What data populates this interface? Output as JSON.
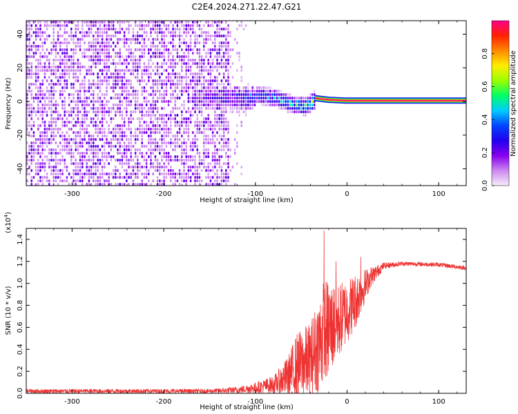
{
  "title": "C2E4.2024.271.22.47.G21",
  "chart_data": [
    {
      "type": "heatmap",
      "xlabel": "Height of straight line (km)",
      "ylabel": "Frequency (Hz)",
      "xlim": [
        -350,
        130
      ],
      "ylim": [
        -50,
        48
      ],
      "x_ticks": [
        "-300",
        "-200",
        "-100",
        "0",
        "100"
      ],
      "y_ticks": [
        "-40",
        "-20",
        "0",
        "20",
        "40"
      ],
      "colorbar": {
        "label": "Normalized spectral amplitude",
        "range": [
          0,
          1
        ],
        "ticks": [
          "0.0",
          "0.2",
          "0.4",
          "0.6",
          "0.8"
        ],
        "colors": [
          "#f6eefa",
          "#cc88ee",
          "#8800ee",
          "#2200ee",
          "#0044ff",
          "#00ccff",
          "#00ff66",
          "#99ff00",
          "#ffee00",
          "#ff8800",
          "#ff2200",
          "#ff0088"
        ]
      },
      "features": [
        {
          "region": "noise",
          "x_range": [
            -350,
            -130
          ],
          "freq_range": [
            -50,
            48
          ],
          "amplitude": 0.15
        },
        {
          "region": "sparse noise",
          "x_range": [
            -130,
            -110
          ],
          "freq_range": [
            -50,
            48
          ],
          "amplitude": 0.05
        },
        {
          "region": "signal onset",
          "x_range": [
            -170,
            -35
          ],
          "freq_center": 3,
          "freq_width": 10,
          "amplitude": 0.4
        },
        {
          "region": "carrier",
          "x_range": [
            -35,
            130
          ],
          "freq_center": 0.5,
          "amplitude": 1.0
        }
      ],
      "carrier_frequency": [
        {
          "x": -100,
          "freq": 5
        },
        {
          "x": -80,
          "freq": 3
        },
        {
          "x": -60,
          "freq": -1
        },
        {
          "x": -45,
          "freq": -2
        },
        {
          "x": -35,
          "freq": 2
        },
        {
          "x": -20,
          "freq": 1
        },
        {
          "x": 0,
          "freq": 0.5
        },
        {
          "x": 130,
          "freq": 0.5
        }
      ]
    },
    {
      "type": "line",
      "xlabel": "Height of straight line (km)",
      "ylabel": "SNR (10 * v/v)",
      "y_multiplier": "(x10",
      "y_multiplier_exp": "4",
      "xlim": [
        -350,
        130
      ],
      "ylim": [
        0,
        1.5
      ],
      "x_ticks": [
        "-300",
        "-200",
        "-100",
        "0",
        "100"
      ],
      "y_ticks": [
        "0.0",
        "0.2",
        "0.4",
        "0.6",
        "0.8",
        "1.0",
        "1.2",
        "1.4"
      ],
      "series": [
        {
          "color": "#ee3333",
          "envelope": [
            {
              "x": -350,
              "mean": 0.02,
              "spread": 0.02
            },
            {
              "x": -150,
              "mean": 0.02,
              "spread": 0.02
            },
            {
              "x": -120,
              "mean": 0.03,
              "spread": 0.03
            },
            {
              "x": -100,
              "mean": 0.05,
              "spread": 0.05
            },
            {
              "x": -80,
              "mean": 0.08,
              "spread": 0.08
            },
            {
              "x": -65,
              "mean": 0.15,
              "spread": 0.18
            },
            {
              "x": -55,
              "mean": 0.25,
              "spread": 0.3
            },
            {
              "x": -40,
              "mean": 0.3,
              "spread": 0.35
            },
            {
              "x": -25,
              "mean": 0.55,
              "spread": 0.5
            },
            {
              "x": -10,
              "mean": 0.65,
              "spread": 0.35
            },
            {
              "x": 10,
              "mean": 0.85,
              "spread": 0.25
            },
            {
              "x": 25,
              "mean": 1.05,
              "spread": 0.1
            },
            {
              "x": 40,
              "mean": 1.16,
              "spread": 0.03
            },
            {
              "x": 60,
              "mean": 1.18,
              "spread": 0.02
            },
            {
              "x": 100,
              "mean": 1.17,
              "spread": 0.02
            },
            {
              "x": 130,
              "mean": 1.14,
              "spread": 0.02
            }
          ],
          "peaks": [
            {
              "x": -25,
              "y": 1.48
            },
            {
              "x": -12,
              "y": 1.2
            },
            {
              "x": 15,
              "y": 1.24
            }
          ]
        }
      ]
    }
  ]
}
